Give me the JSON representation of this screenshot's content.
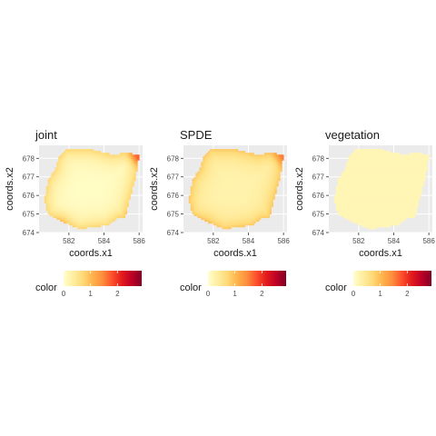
{
  "chart_data": [
    {
      "type": "heatmap",
      "title": "joint",
      "xlabel": "coords.x1",
      "ylabel": "coords.x2",
      "xlim": [
        580.3,
        586.2
      ],
      "ylim": [
        674.0,
        678.7
      ],
      "x_ticks": [
        {
          "value": 582,
          "label": "582"
        },
        {
          "value": 584,
          "label": "584"
        },
        {
          "value": 586,
          "label": "586"
        }
      ],
      "y_ticks": [
        {
          "value": 674,
          "label": "674"
        },
        {
          "value": 675,
          "label": "675"
        },
        {
          "value": 676,
          "label": "676"
        },
        {
          "value": 677,
          "label": "677"
        },
        {
          "value": 678,
          "label": "678"
        }
      ],
      "region_outline": [
        [
          581.8,
          678.5
        ],
        [
          583.2,
          678.5
        ],
        [
          584.5,
          678.2
        ],
        [
          585.2,
          678.3
        ],
        [
          586.0,
          678.2
        ],
        [
          585.8,
          677.0
        ],
        [
          585.4,
          675.6
        ],
        [
          585.2,
          674.8
        ],
        [
          584.8,
          674.8
        ],
        [
          584.2,
          674.4
        ],
        [
          582.6,
          674.2
        ],
        [
          581.6,
          674.6
        ],
        [
          580.8,
          675.0
        ],
        [
          580.6,
          675.8
        ],
        [
          580.8,
          676.8
        ],
        [
          581.2,
          677.4
        ],
        [
          581.4,
          678.0
        ]
      ],
      "field_levels": {
        "center": 0.05,
        "edge": 0.75,
        "hotspots": [
          {
            "x": 585.9,
            "y": 678.1,
            "value": 1.8
          },
          {
            "x": 581.6,
            "y": 674.6,
            "value": 1.0
          },
          {
            "x": 585.3,
            "y": 674.9,
            "value": 0.9
          }
        ]
      },
      "legend": {
        "title": "color",
        "ticks": [
          "0",
          "1",
          "2"
        ],
        "range": [
          0,
          2.9
        ],
        "placement": "bottom"
      }
    },
    {
      "type": "heatmap",
      "title": "SPDE",
      "xlabel": "coords.x1",
      "ylabel": "coords.x2",
      "xlim": [
        580.3,
        586.2
      ],
      "ylim": [
        674.0,
        678.7
      ],
      "x_ticks": [
        {
          "value": 582,
          "label": "582"
        },
        {
          "value": 584,
          "label": "584"
        },
        {
          "value": 586,
          "label": "586"
        }
      ],
      "y_ticks": [
        {
          "value": 674,
          "label": "674"
        },
        {
          "value": 675,
          "label": "675"
        },
        {
          "value": 676,
          "label": "676"
        },
        {
          "value": 677,
          "label": "677"
        },
        {
          "value": 678,
          "label": "678"
        }
      ],
      "region_outline": [
        [
          581.8,
          678.5
        ],
        [
          583.2,
          678.5
        ],
        [
          584.5,
          678.2
        ],
        [
          585.2,
          678.3
        ],
        [
          586.0,
          678.2
        ],
        [
          585.8,
          677.0
        ],
        [
          585.4,
          675.6
        ],
        [
          585.2,
          674.8
        ],
        [
          584.8,
          674.8
        ],
        [
          584.2,
          674.4
        ],
        [
          582.6,
          674.2
        ],
        [
          581.6,
          674.6
        ],
        [
          580.8,
          675.0
        ],
        [
          580.6,
          675.8
        ],
        [
          580.8,
          676.8
        ],
        [
          581.2,
          677.4
        ],
        [
          581.4,
          678.0
        ]
      ],
      "field_levels": {
        "center": 0.25,
        "edge": 0.9,
        "hotspots": [
          {
            "x": 585.9,
            "y": 678.1,
            "value": 1.6
          },
          {
            "x": 581.6,
            "y": 674.6,
            "value": 1.0
          }
        ]
      },
      "legend": {
        "title": "color",
        "ticks": [
          "0",
          "1",
          "2"
        ],
        "range": [
          0,
          2.9
        ],
        "placement": "bottom"
      }
    },
    {
      "type": "heatmap",
      "title": "vegetation",
      "xlabel": "coords.x1",
      "ylabel": "coords.x2",
      "xlim": [
        580.3,
        586.2
      ],
      "ylim": [
        674.0,
        678.7
      ],
      "x_ticks": [
        {
          "value": 582,
          "label": "582"
        },
        {
          "value": 584,
          "label": "584"
        },
        {
          "value": 586,
          "label": "586"
        }
      ],
      "y_ticks": [
        {
          "value": 674,
          "label": "674"
        },
        {
          "value": 675,
          "label": "675"
        },
        {
          "value": 676,
          "label": "676"
        },
        {
          "value": 677,
          "label": "677"
        },
        {
          "value": 678,
          "label": "678"
        }
      ],
      "region_outline": [
        [
          581.8,
          678.5
        ],
        [
          583.2,
          678.5
        ],
        [
          584.5,
          678.2
        ],
        [
          585.2,
          678.3
        ],
        [
          586.0,
          678.2
        ],
        [
          585.8,
          677.0
        ],
        [
          585.4,
          675.6
        ],
        [
          585.2,
          674.8
        ],
        [
          584.8,
          674.8
        ],
        [
          584.2,
          674.4
        ],
        [
          582.6,
          674.2
        ],
        [
          581.6,
          674.6
        ],
        [
          580.8,
          675.0
        ],
        [
          580.6,
          675.8
        ],
        [
          580.8,
          676.8
        ],
        [
          581.2,
          677.4
        ],
        [
          581.4,
          678.0
        ]
      ],
      "field_levels": {
        "center": 0.2,
        "edge": 0.2,
        "hotspots": []
      },
      "legend": {
        "title": "color",
        "ticks": [
          "0",
          "1",
          "2"
        ],
        "range": [
          0,
          2.9
        ],
        "placement": "bottom"
      }
    }
  ],
  "colors": {
    "panel_background": "#ebebeb",
    "grid": "#ffffff",
    "scale": [
      "#ffffcc",
      "#ffeda0",
      "#fed976",
      "#feb24c",
      "#fd8d3c",
      "#fc4e2a",
      "#e31a1c",
      "#bd0026",
      "#800026"
    ]
  }
}
